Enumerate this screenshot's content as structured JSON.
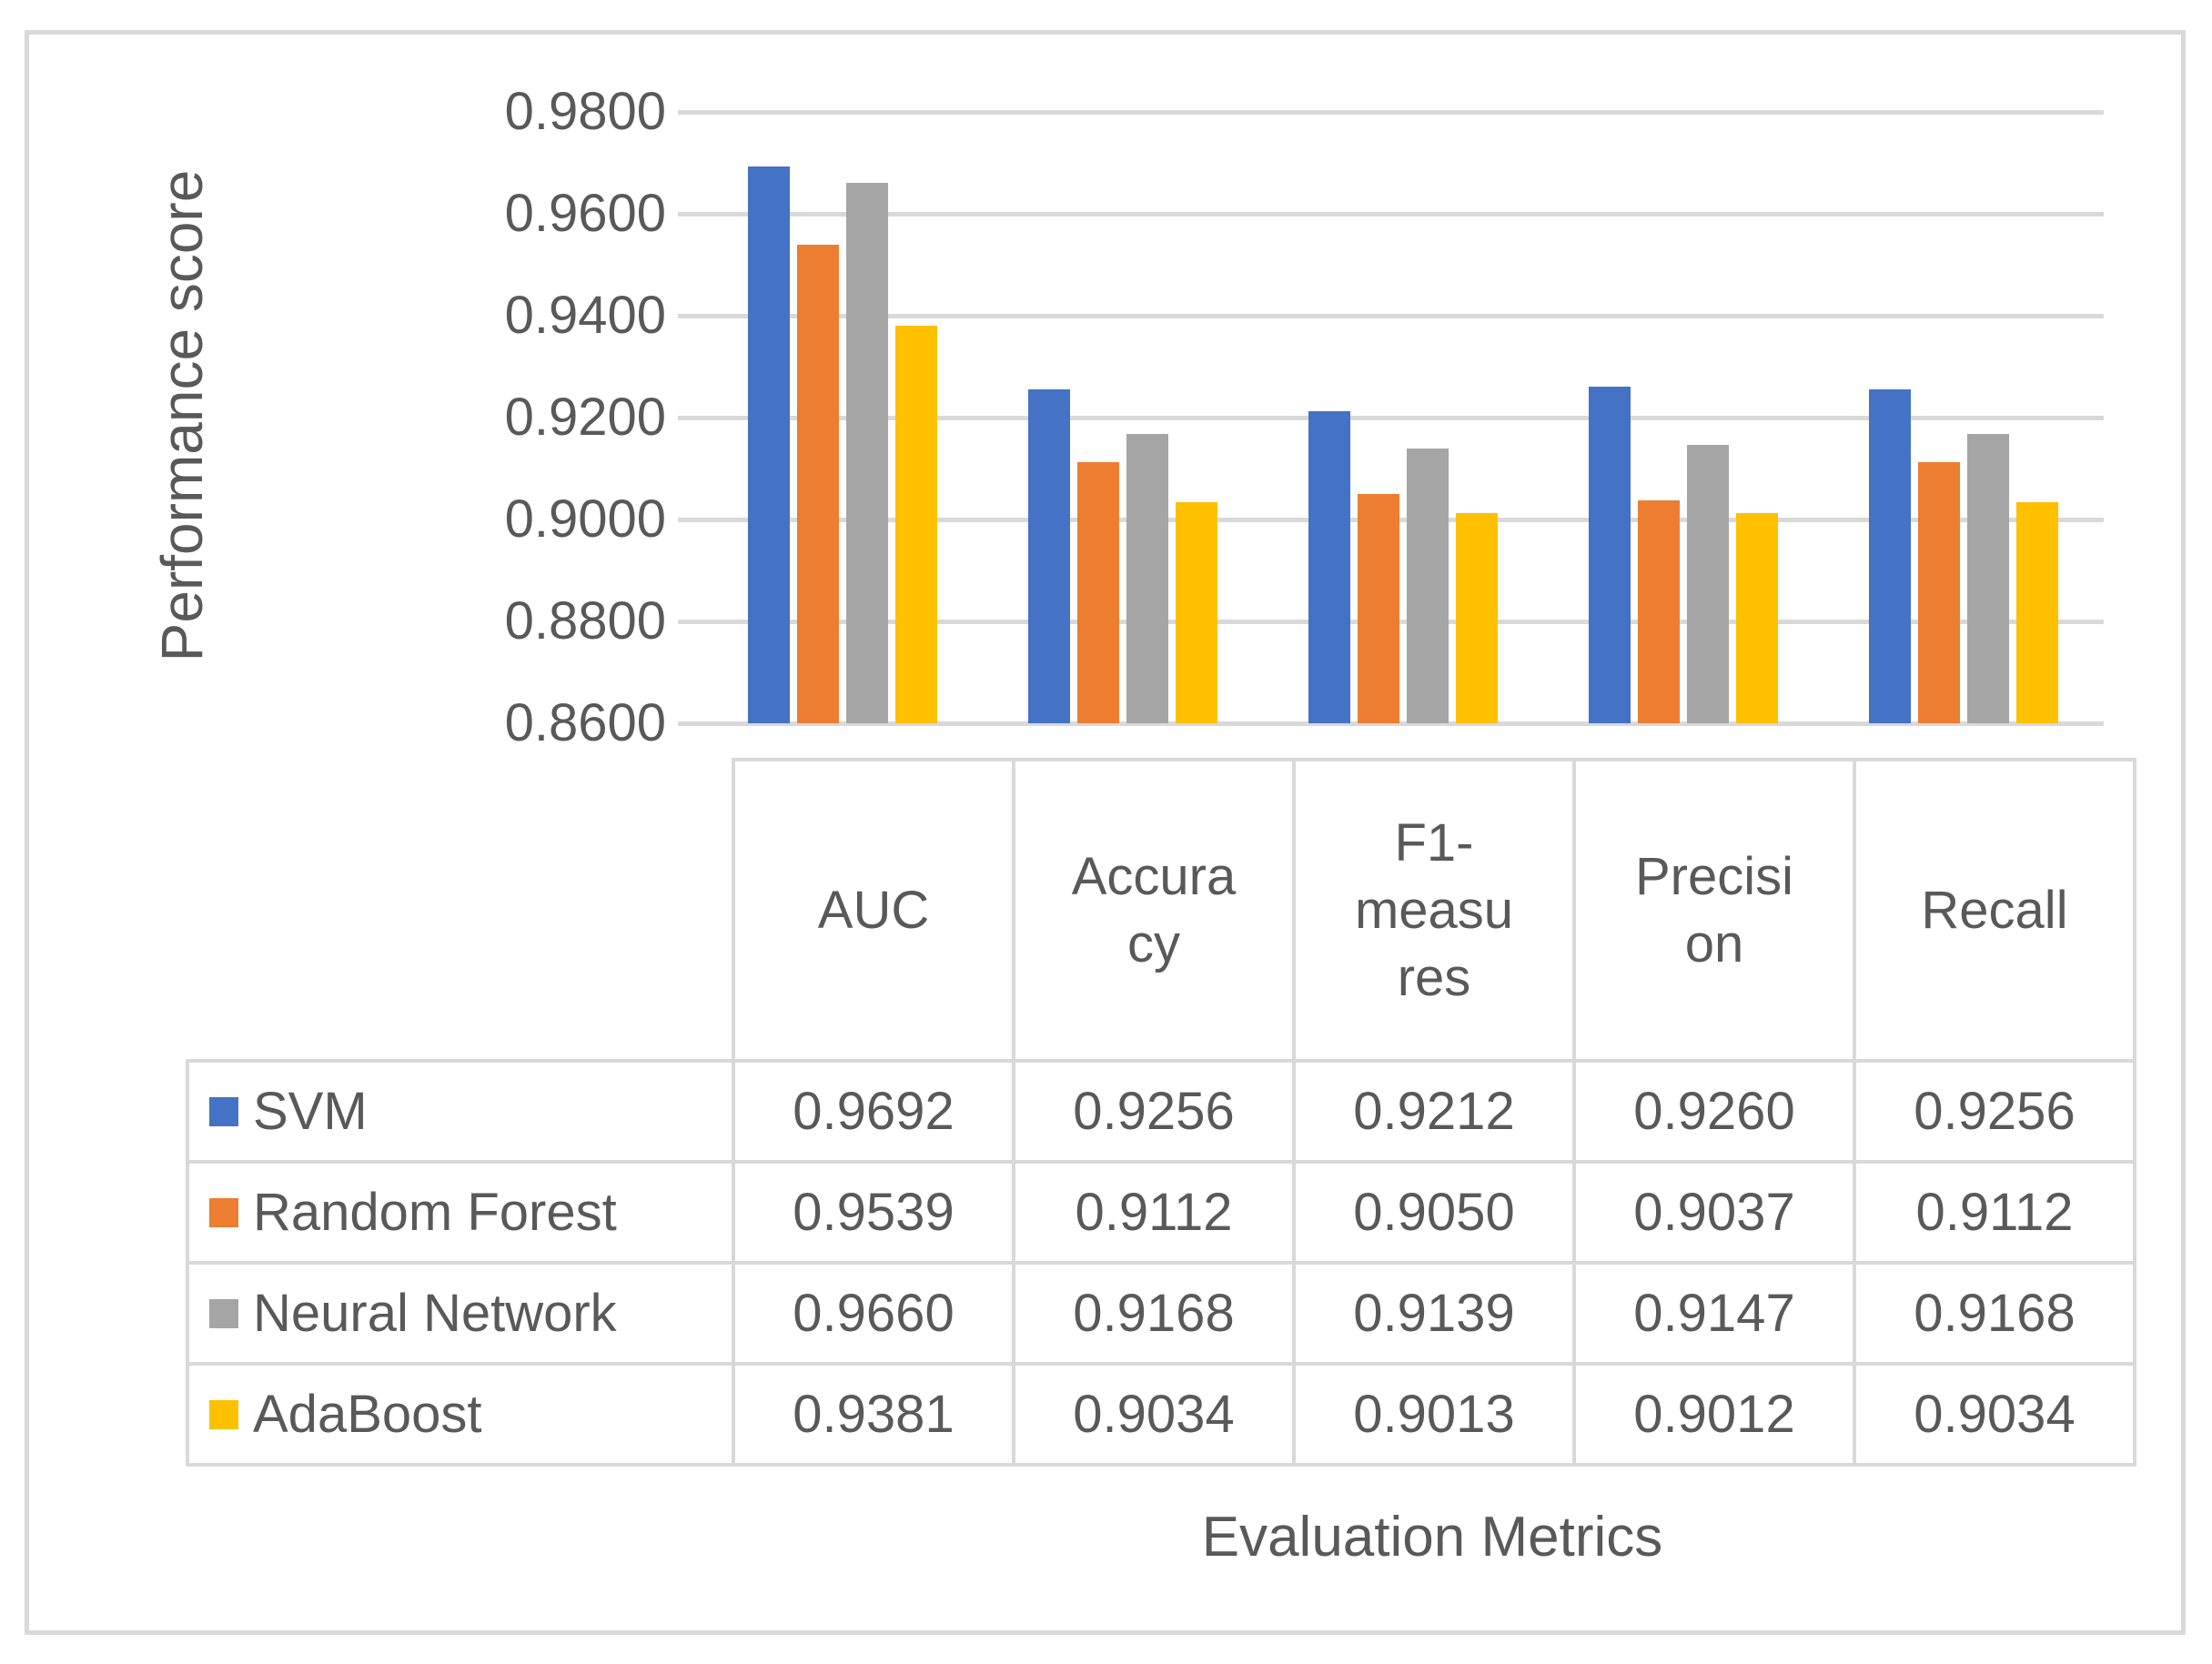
{
  "chart_data": {
    "type": "bar",
    "title": "",
    "xlabel": "Evaluation Metrics",
    "ylabel": "Performance score",
    "categories": [
      "AUC",
      "Accuracy",
      "F1-measures",
      "Precision",
      "Recall"
    ],
    "series": [
      {
        "name": "SVM",
        "color": "#4472C4",
        "values": [
          0.9692,
          0.9256,
          0.9212,
          0.926,
          0.9256
        ]
      },
      {
        "name": "Random Forest",
        "color": "#ED7D31",
        "values": [
          0.9539,
          0.9112,
          0.905,
          0.9037,
          0.9112
        ]
      },
      {
        "name": "Neural Network",
        "color": "#A5A5A5",
        "values": [
          0.966,
          0.9168,
          0.9139,
          0.9147,
          0.9168
        ]
      },
      {
        "name": "AdaBoost",
        "color": "#FFC000",
        "values": [
          0.9381,
          0.9034,
          0.9013,
          0.9012,
          0.9034
        ]
      }
    ],
    "ylim": [
      0.86,
      0.98
    ],
    "ytick_step": 0.02,
    "ytick_labels": [
      "0.8600",
      "0.8800",
      "0.9000",
      "0.9200",
      "0.9400",
      "0.9600",
      "0.9800"
    ],
    "grid": true,
    "legend_position": "table-left-column",
    "gridline_color": "#D9D9D9",
    "text_color": "#595959"
  },
  "table": {
    "header_lines": [
      [
        "AUC"
      ],
      [
        "Accura",
        "cy"
      ],
      [
        "F1-",
        "measu",
        "res"
      ],
      [
        "Precisi",
        "on"
      ],
      [
        "Recall"
      ]
    ],
    "rows": [
      {
        "label": "SVM",
        "swatch": "#4472C4",
        "values": [
          "0.9692",
          "0.9256",
          "0.9212",
          "0.9260",
          "0.9256"
        ]
      },
      {
        "label": "Random Forest",
        "swatch": "#ED7D31",
        "values": [
          "0.9539",
          "0.9112",
          "0.9050",
          "0.9037",
          "0.9112"
        ]
      },
      {
        "label": "Neural Network",
        "swatch": "#A5A5A5",
        "values": [
          "0.9660",
          "0.9168",
          "0.9139",
          "0.9147",
          "0.9168"
        ]
      },
      {
        "label": "AdaBoost",
        "swatch": "#FFC000",
        "values": [
          "0.9381",
          "0.9034",
          "0.9013",
          "0.9012",
          "0.9034"
        ]
      }
    ]
  },
  "axis": {
    "x_title": "Evaluation Metrics",
    "y_title": "Performance score"
  }
}
